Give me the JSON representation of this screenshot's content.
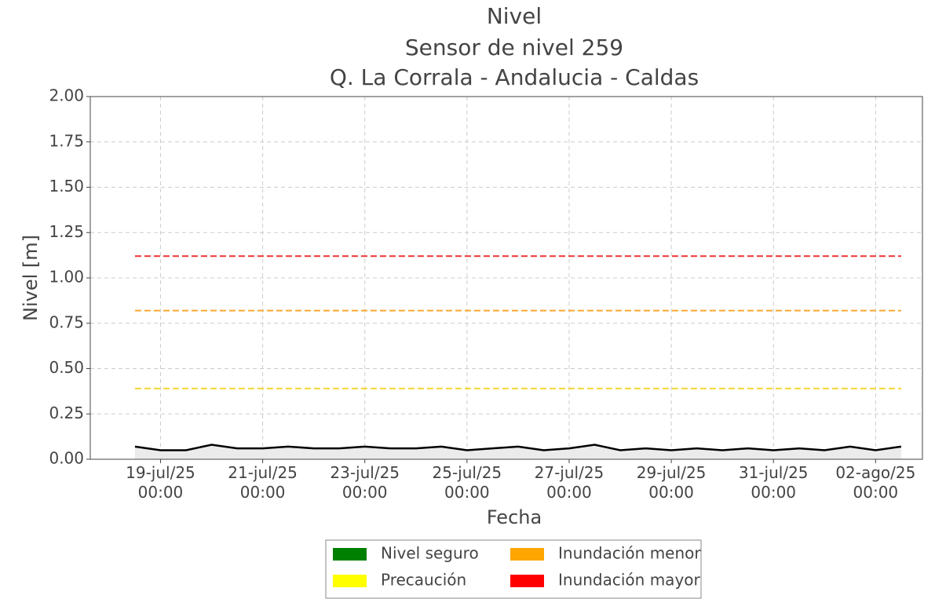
{
  "chart_data": {
    "type": "line",
    "title": "Nivel",
    "subtitle": "Sensor de nivel 259",
    "location": "Q. La Corrala - Andalucia - Caldas",
    "xlabel": "Fecha",
    "ylabel": "Nivel [m]",
    "x": [
      "2025-07-18T12:00",
      "2025-07-19T00:00",
      "2025-07-19T12:00",
      "2025-07-20T00:00",
      "2025-07-20T12:00",
      "2025-07-21T00:00",
      "2025-07-21T12:00",
      "2025-07-22T00:00",
      "2025-07-22T12:00",
      "2025-07-23T00:00",
      "2025-07-23T12:00",
      "2025-07-24T00:00",
      "2025-07-24T12:00",
      "2025-07-25T00:00",
      "2025-07-25T12:00",
      "2025-07-26T00:00",
      "2025-07-26T12:00",
      "2025-07-27T00:00",
      "2025-07-27T12:00",
      "2025-07-28T00:00",
      "2025-07-28T12:00",
      "2025-07-29T00:00",
      "2025-07-29T12:00",
      "2025-07-30T00:00",
      "2025-07-30T12:00",
      "2025-07-31T00:00",
      "2025-07-31T12:00",
      "2025-08-01T00:00",
      "2025-08-01T12:00",
      "2025-08-02T00:00",
      "2025-08-02T12:00"
    ],
    "series": [
      {
        "color": "#000000",
        "fill": "#ebebeb",
        "values": [
          0.07,
          0.05,
          0.05,
          0.08,
          0.06,
          0.06,
          0.07,
          0.06,
          0.06,
          0.07,
          0.06,
          0.06,
          0.07,
          0.05,
          0.06,
          0.07,
          0.05,
          0.06,
          0.08,
          0.05,
          0.06,
          0.05,
          0.06,
          0.05,
          0.06,
          0.05,
          0.06,
          0.05,
          0.07,
          0.05,
          0.07
        ]
      }
    ],
    "levels": [
      {
        "name": "Nivel seguro",
        "color": "#008000"
      },
      {
        "name": "Precaución",
        "color": "#ffff00",
        "line_color": "#f5d833",
        "value": 0.39
      },
      {
        "name": "Inundación menor",
        "color": "#ffa500",
        "line_color": "#f9a832",
        "value": 0.82
      },
      {
        "name": "Inundación mayor",
        "color": "#ff0000",
        "line_color": "#ee3333",
        "value": 1.12
      }
    ],
    "xlim": [
      "2025-07-17T15:00",
      "2025-08-02T22:00"
    ],
    "xticks": [
      {
        "value": "2025-07-19T00:00",
        "label": "19-jul/25\n00:00"
      },
      {
        "value": "2025-07-21T00:00",
        "label": "21-jul/25\n00:00"
      },
      {
        "value": "2025-07-23T00:00",
        "label": "23-jul/25\n00:00"
      },
      {
        "value": "2025-07-25T00:00",
        "label": "25-jul/25\n00:00"
      },
      {
        "value": "2025-07-27T00:00",
        "label": "27-jul/25\n00:00"
      },
      {
        "value": "2025-07-29T00:00",
        "label": "29-jul/25\n00:00"
      },
      {
        "value": "2025-07-31T00:00",
        "label": "31-jul/25\n00:00"
      },
      {
        "value": "2025-08-02T00:00",
        "label": "02-ago/25\n00:00"
      }
    ],
    "ylim": [
      0,
      2
    ],
    "yticks": [
      {
        "value": 0,
        "label": "0.00"
      },
      {
        "value": 0.25,
        "label": "0.25"
      },
      {
        "value": 0.5,
        "label": "0.50"
      },
      {
        "value": 0.75,
        "label": "0.75"
      },
      {
        "value": 1,
        "label": "1.00"
      },
      {
        "value": 1.25,
        "label": "1.25"
      },
      {
        "value": 1.5,
        "label": "1.50"
      },
      {
        "value": 1.75,
        "label": "1.75"
      },
      {
        "value": 2,
        "label": "2.00"
      }
    ],
    "grid": true,
    "legend": "bottom"
  }
}
